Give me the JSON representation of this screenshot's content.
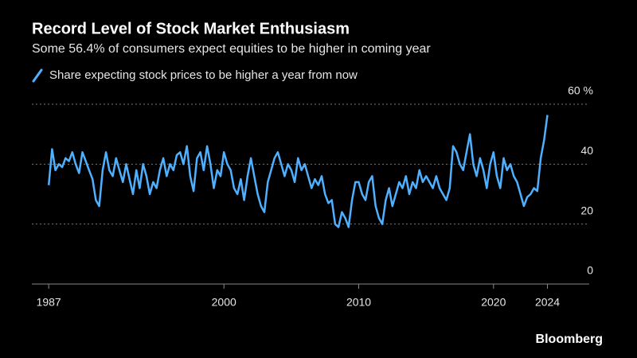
{
  "chart_data": {
    "type": "line",
    "title": "Record Level of Stock Market Enthusiasm",
    "subtitle": "Some 56.4% of consumers expect equities to be higher in coming year",
    "source": "Bloomberg",
    "x": [
      1987,
      1987.25,
      1987.5,
      1987.75,
      1988,
      1988.25,
      1988.5,
      1988.75,
      1989,
      1989.25,
      1989.5,
      1989.75,
      1990,
      1990.25,
      1990.5,
      1990.75,
      1991,
      1991.25,
      1991.5,
      1991.75,
      1992,
      1992.25,
      1992.5,
      1992.75,
      1993,
      1993.25,
      1993.5,
      1993.75,
      1994,
      1994.25,
      1994.5,
      1994.75,
      1995,
      1995.25,
      1995.5,
      1995.75,
      1996,
      1996.25,
      1996.5,
      1996.75,
      1997,
      1997.25,
      1997.5,
      1997.75,
      1998,
      1998.25,
      1998.5,
      1998.75,
      1999,
      1999.25,
      1999.5,
      1999.75,
      2000,
      2000.25,
      2000.5,
      2000.75,
      2001,
      2001.25,
      2001.5,
      2001.75,
      2002,
      2002.25,
      2002.5,
      2002.75,
      2003,
      2003.25,
      2003.5,
      2003.75,
      2004,
      2004.25,
      2004.5,
      2004.75,
      2005,
      2005.25,
      2005.5,
      2005.75,
      2006,
      2006.25,
      2006.5,
      2006.75,
      2007,
      2007.25,
      2007.5,
      2007.75,
      2008,
      2008.25,
      2008.5,
      2008.75,
      2009,
      2009.25,
      2009.5,
      2009.75,
      2010,
      2010.25,
      2010.5,
      2010.75,
      2011,
      2011.25,
      2011.5,
      2011.75,
      2012,
      2012.25,
      2012.5,
      2012.75,
      2013,
      2013.25,
      2013.5,
      2013.75,
      2014,
      2014.25,
      2014.5,
      2014.75,
      2015,
      2015.25,
      2015.5,
      2015.75,
      2016,
      2016.25,
      2016.5,
      2016.75,
      2017,
      2017.25,
      2017.5,
      2017.75,
      2018,
      2018.25,
      2018.5,
      2018.75,
      2019,
      2019.25,
      2019.5,
      2019.75,
      2020,
      2020.25,
      2020.5,
      2020.75,
      2021,
      2021.25,
      2021.5,
      2021.75,
      2022,
      2022.25,
      2022.5,
      2022.75,
      2023,
      2023.25,
      2023.5,
      2023.75,
      2024
    ],
    "series": [
      {
        "name": "Share expecting stock prices to be higher a year from now",
        "color": "#4fb0ff",
        "values": [
          33,
          45,
          38,
          40,
          39,
          42,
          41,
          44,
          40,
          37,
          44,
          41,
          38,
          35,
          28,
          26,
          38,
          44,
          38,
          36,
          42,
          38,
          34,
          40,
          35,
          30,
          38,
          32,
          40,
          36,
          30,
          34,
          32,
          38,
          42,
          36,
          40,
          38,
          43,
          44,
          40,
          46,
          36,
          31,
          42,
          44,
          38,
          46,
          40,
          32,
          38,
          36,
          44,
          40,
          38,
          32,
          30,
          35,
          28,
          36,
          42,
          36,
          30,
          26,
          24,
          34,
          38,
          42,
          44,
          40,
          36,
          40,
          38,
          34,
          42,
          38,
          40,
          36,
          32,
          35,
          33,
          36,
          30,
          27,
          28,
          20,
          19,
          24,
          22,
          19,
          28,
          34,
          34,
          30,
          28,
          34,
          36,
          26,
          22,
          20,
          28,
          32,
          26,
          30,
          34,
          32,
          36,
          30,
          34,
          32,
          38,
          34,
          36,
          34,
          32,
          36,
          32,
          30,
          28,
          32,
          46,
          44,
          40,
          38,
          44,
          50,
          40,
          36,
          42,
          38,
          32,
          40,
          44,
          36,
          32,
          42,
          38,
          40,
          36,
          34,
          30,
          26,
          29,
          30,
          32,
          31,
          42,
          48,
          56.4
        ]
      }
    ],
    "xlim": [
      1985.75,
      2027.1
    ],
    "xticks": [
      1987,
      2000,
      2010,
      2020,
      2024
    ],
    "ylim": [
      0,
      60
    ],
    "yticks": [
      0,
      20,
      40,
      {
        "value": 60,
        "label": "60 %"
      }
    ],
    "grid": true
  }
}
